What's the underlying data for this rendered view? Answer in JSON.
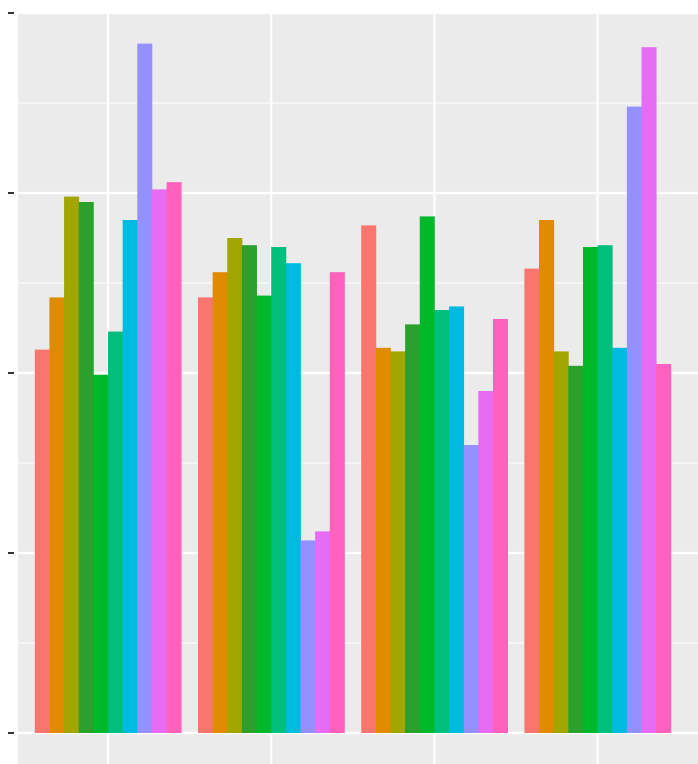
{
  "chart_data": {
    "type": "bar",
    "title": "",
    "xlabel": "",
    "ylabel": "",
    "categories": [
      "",
      "",
      "",
      ""
    ],
    "ylim": [
      0,
      4.0
    ],
    "grid": true,
    "legend": "none",
    "series": [
      {
        "color": "#F8766D",
        "values": [
          2.13,
          2.42,
          2.82,
          2.58
        ]
      },
      {
        "color": "#E08B00",
        "values": [
          2.42,
          2.56,
          2.14,
          2.85
        ]
      },
      {
        "color": "#A3A500",
        "values": [
          2.98,
          2.75,
          2.12,
          2.12
        ]
      },
      {
        "color": "#2CA02C",
        "values": [
          2.95,
          2.71,
          2.27,
          2.04
        ]
      },
      {
        "color": "#00B92A",
        "values": [
          1.99,
          2.43,
          2.87,
          2.7
        ]
      },
      {
        "color": "#00BF7D",
        "values": [
          2.23,
          2.7,
          2.35,
          2.71
        ]
      },
      {
        "color": "#00BAE0",
        "values": [
          2.85,
          2.61,
          2.37,
          2.14
        ]
      },
      {
        "color": "#9590FF",
        "values": [
          3.83,
          1.07,
          1.6,
          3.48
        ]
      },
      {
        "color": "#E76BF3",
        "values": [
          3.02,
          1.12,
          1.9,
          3.81
        ]
      },
      {
        "color": "#FF62BC",
        "values": [
          3.06,
          2.56,
          2.3,
          2.05
        ]
      }
    ]
  }
}
